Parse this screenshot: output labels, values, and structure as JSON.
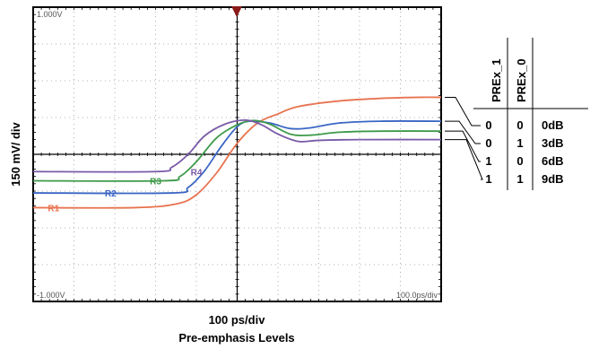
{
  "chart_data": {
    "type": "line",
    "title": "",
    "xlabel": "100 ps/div",
    "caption": "Pre-emphasis Levels",
    "ylabel": "150 mV/ div",
    "x_divisions": 10,
    "y_divisions": 8,
    "screen_labels": {
      "top_left": "1.000V",
      "bottom_left": "-1.000V",
      "bottom_right": "100.0ps/div"
    },
    "grid": true,
    "series": [
      {
        "name": "R1",
        "color": "#e8734f",
        "points": [
          [
            0,
            -1.45
          ],
          [
            2.5,
            -1.45
          ],
          [
            3.5,
            -1.35
          ],
          [
            4.0,
            -1.1
          ],
          [
            4.5,
            -0.5
          ],
          [
            5.0,
            0.3
          ],
          [
            5.5,
            0.85
          ],
          [
            6.0,
            1.1
          ],
          [
            6.5,
            1.3
          ],
          [
            7.5,
            1.45
          ],
          [
            8.5,
            1.52
          ],
          [
            9.5,
            1.55
          ],
          [
            10,
            1.55
          ]
        ]
      },
      {
        "name": "R2",
        "color": "#3a66c4",
        "points": [
          [
            0,
            -1.05
          ],
          [
            3.4,
            -1.05
          ],
          [
            3.8,
            -0.9
          ],
          [
            4.2,
            -0.45
          ],
          [
            4.6,
            0.2
          ],
          [
            5.0,
            0.75
          ],
          [
            5.3,
            0.9
          ],
          [
            5.8,
            0.85
          ],
          [
            6.3,
            0.7
          ],
          [
            6.8,
            0.72
          ],
          [
            7.5,
            0.85
          ],
          [
            8.5,
            0.9
          ],
          [
            10,
            0.9
          ]
        ]
      },
      {
        "name": "R3",
        "color": "#3e9a4a",
        "points": [
          [
            0,
            -0.72
          ],
          [
            3.2,
            -0.72
          ],
          [
            3.6,
            -0.6
          ],
          [
            4.0,
            -0.2
          ],
          [
            4.5,
            0.45
          ],
          [
            5.0,
            0.8
          ],
          [
            5.4,
            0.92
          ],
          [
            5.8,
            0.82
          ],
          [
            6.3,
            0.55
          ],
          [
            6.8,
            0.52
          ],
          [
            7.5,
            0.6
          ],
          [
            8.5,
            0.63
          ],
          [
            10,
            0.63
          ]
        ]
      },
      {
        "name": "R4",
        "color": "#7a5aa8",
        "points": [
          [
            0,
            -0.47
          ],
          [
            3.0,
            -0.47
          ],
          [
            3.4,
            -0.35
          ],
          [
            3.8,
            0.0
          ],
          [
            4.2,
            0.5
          ],
          [
            4.7,
            0.82
          ],
          [
            5.2,
            0.93
          ],
          [
            5.6,
            0.8
          ],
          [
            6.0,
            0.55
          ],
          [
            6.5,
            0.35
          ],
          [
            7.0,
            0.38
          ],
          [
            8.0,
            0.4
          ],
          [
            10,
            0.4
          ]
        ]
      }
    ],
    "legend_table": {
      "headers": [
        "PREx_1",
        "PREx_0"
      ],
      "rows": [
        [
          "0",
          "0",
          "0dB"
        ],
        [
          "0",
          "1",
          "3dB"
        ],
        [
          "1",
          "0",
          "6dB"
        ],
        [
          "1",
          "1",
          "9dB"
        ]
      ]
    }
  }
}
